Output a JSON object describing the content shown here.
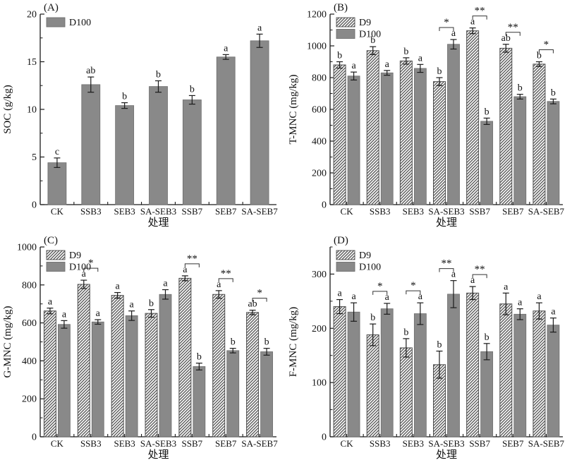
{
  "figure": {
    "background_color": "#ffffff",
    "text_color": "#111111",
    "axis_color": "#1a1a1a",
    "bar_fill": "#898989",
    "bar_edge": "#6f6f6f",
    "hatch_color": "#4f4f4f",
    "error_bar_color": "#1a1a1a",
    "legend_labels": {
      "d9": "D9",
      "d100": "D100"
    }
  },
  "chart_data": [
    {
      "type": "bar",
      "panel_label": "(A)",
      "ylabel": "SOC (g/kg)",
      "xlabel": "处理",
      "categories": [
        "CK",
        "SSB3",
        "SEB3",
        "SA-SEB3",
        "SSB7",
        "SEB7",
        "SA-SEB7"
      ],
      "ylim": [
        0,
        20
      ],
      "yticks": [
        0,
        5,
        10,
        15,
        20
      ],
      "yminor_step": 2.5,
      "grid": false,
      "legend_position": "top-left",
      "series": [
        {
          "name": "D100",
          "pattern": "solid",
          "values": [
            4.4,
            12.6,
            10.4,
            12.4,
            11.0,
            15.5,
            17.2
          ],
          "errors": [
            0.5,
            0.8,
            0.3,
            0.6,
            0.45,
            0.25,
            0.7
          ],
          "letters": [
            "c",
            "ab",
            "b",
            "b",
            "b",
            "a",
            "a"
          ]
        }
      ],
      "significance": []
    },
    {
      "type": "bar",
      "panel_label": "(B)",
      "ylabel": "T-MNC (mg/kg)",
      "xlabel": "处理",
      "categories": [
        "CK",
        "SSB3",
        "SEB3",
        "SA-SEB3",
        "SSB7",
        "SEB7",
        "SA-SEB7"
      ],
      "ylim": [
        0,
        1200
      ],
      "yticks": [
        0,
        200,
        400,
        600,
        800,
        1000,
        1200
      ],
      "yminor_step": 100,
      "grid": false,
      "legend_position": "top-left",
      "series": [
        {
          "name": "D9",
          "pattern": "hatch",
          "values": [
            880,
            970,
            905,
            775,
            1095,
            985,
            885
          ],
          "errors": [
            20,
            25,
            20,
            25,
            18,
            25,
            15
          ],
          "letters": [
            "b",
            "b",
            "b",
            "b",
            "a",
            "ab",
            "b"
          ]
        },
        {
          "name": "D100",
          "pattern": "solid",
          "values": [
            810,
            830,
            858,
            1010,
            525,
            680,
            650
          ],
          "errors": [
            25,
            15,
            25,
            30,
            20,
            15,
            15
          ],
          "letters": [
            "a",
            "a",
            "a",
            "a",
            "b",
            "b",
            "b"
          ]
        }
      ],
      "significance": [
        {
          "category": "SA-SEB3",
          "label": "*"
        },
        {
          "category": "SSB7",
          "label": "**"
        },
        {
          "category": "SEB7",
          "label": "**"
        },
        {
          "category": "SA-SEB7",
          "label": "*"
        }
      ]
    },
    {
      "type": "bar",
      "panel_label": "(C)",
      "ylabel": "G-MNC (mg/kg)",
      "xlabel": "处理",
      "categories": [
        "CK",
        "SSB3",
        "SEB3",
        "SA-SEB3",
        "SSB7",
        "SEB7",
        "SA-SEB7"
      ],
      "ylim": [
        0,
        1000
      ],
      "yticks": [
        0,
        200,
        400,
        600,
        800,
        1000
      ],
      "yminor_step": 100,
      "grid": false,
      "legend_position": "top-left",
      "series": [
        {
          "name": "D9",
          "pattern": "hatch",
          "values": [
            663,
            803,
            745,
            650,
            835,
            750,
            655
          ],
          "errors": [
            15,
            22,
            15,
            20,
            13,
            20,
            12
          ],
          "letters": [
            "a",
            "a",
            "a",
            "b",
            "a",
            "a",
            "ab"
          ]
        },
        {
          "name": "D100",
          "pattern": "solid",
          "values": [
            592,
            605,
            638,
            750,
            370,
            454,
            448
          ],
          "errors": [
            20,
            12,
            25,
            25,
            18,
            12,
            18
          ],
          "letters": [
            "a",
            "a",
            "a",
            "a",
            "b",
            "b",
            "b"
          ]
        }
      ],
      "significance": [
        {
          "category": "SSB3",
          "label": "*"
        },
        {
          "category": "SSB7",
          "label": "**"
        },
        {
          "category": "SEB7",
          "label": "**"
        },
        {
          "category": "SA-SEB7",
          "label": "*"
        }
      ]
    },
    {
      "type": "bar",
      "panel_label": "(D)",
      "ylabel": "F-MNC (mg/kg)",
      "xlabel": "处理",
      "categories": [
        "CK",
        "SSB3",
        "SEB3",
        "SA-SEB3",
        "SSB7",
        "SEB7",
        "SA-SEB7"
      ],
      "ylim": [
        0,
        350
      ],
      "yticks": [
        0,
        100,
        200,
        300
      ],
      "yminor_step": 50,
      "grid": false,
      "legend_position": "top-left",
      "series": [
        {
          "name": "D9",
          "pattern": "hatch",
          "values": [
            240,
            188,
            164,
            133,
            265,
            245,
            232
          ],
          "errors": [
            13,
            20,
            17,
            25,
            12,
            20,
            15
          ],
          "letters": [
            "a",
            "b",
            "b",
            "b",
            "a",
            "a",
            "a"
          ]
        },
        {
          "name": "D100",
          "pattern": "solid",
          "values": [
            230,
            236,
            227,
            263,
            157,
            226,
            206
          ],
          "errors": [
            17,
            10,
            20,
            25,
            15,
            10,
            13
          ],
          "letters": [
            "a",
            "a",
            "a",
            "a",
            "b",
            "a",
            "a"
          ]
        }
      ],
      "significance": [
        {
          "category": "SSB3",
          "label": "*"
        },
        {
          "category": "SEB3",
          "label": "*"
        },
        {
          "category": "SA-SEB3",
          "label": "**"
        },
        {
          "category": "SSB7",
          "label": "**"
        }
      ]
    }
  ]
}
